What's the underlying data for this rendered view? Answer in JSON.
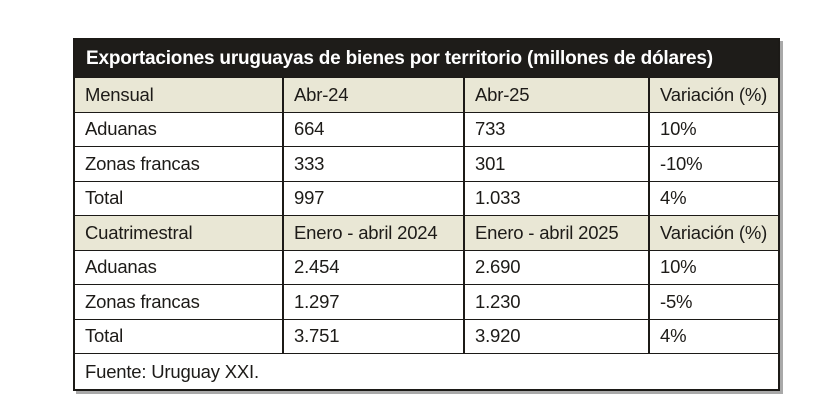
{
  "chart_data": {
    "type": "table",
    "title": "Exportaciones uruguayas de bienes por territorio (millones de dólares)",
    "sections": [
      {
        "columns": [
          "Mensual",
          "Abr-24",
          "Abr-25",
          "Variación (%)"
        ],
        "rows": [
          [
            "Aduanas",
            "664",
            "733",
            "10%"
          ],
          [
            "Zonas francas",
            "333",
            "301",
            "-10%"
          ],
          [
            "Total",
            "997",
            "1.033",
            "4%"
          ]
        ]
      },
      {
        "columns": [
          "Cuatrimestral",
          "Enero - abril 2024",
          "Enero - abril 2025",
          "Variación (%)"
        ],
        "rows": [
          [
            "Aduanas",
            "2.454",
            "2.690",
            "10%"
          ],
          [
            "Zonas francas",
            "1.297",
            "1.230",
            "-5%"
          ],
          [
            "Total",
            "3.751",
            "3.920",
            "4%"
          ]
        ]
      }
    ],
    "source": "Fuente: Uruguay XXI.",
    "layout_hints": {
      "grid": "on",
      "legend": "none"
    }
  },
  "colors": {
    "title_bg": "#1e1c19",
    "title_text": "#ffffff",
    "header_bg": "#e9e7d5",
    "row_bg": "#ffffff",
    "border": "#1c1a17",
    "body_text": "#1d1b18",
    "shadow": "#a9a9a9"
  }
}
